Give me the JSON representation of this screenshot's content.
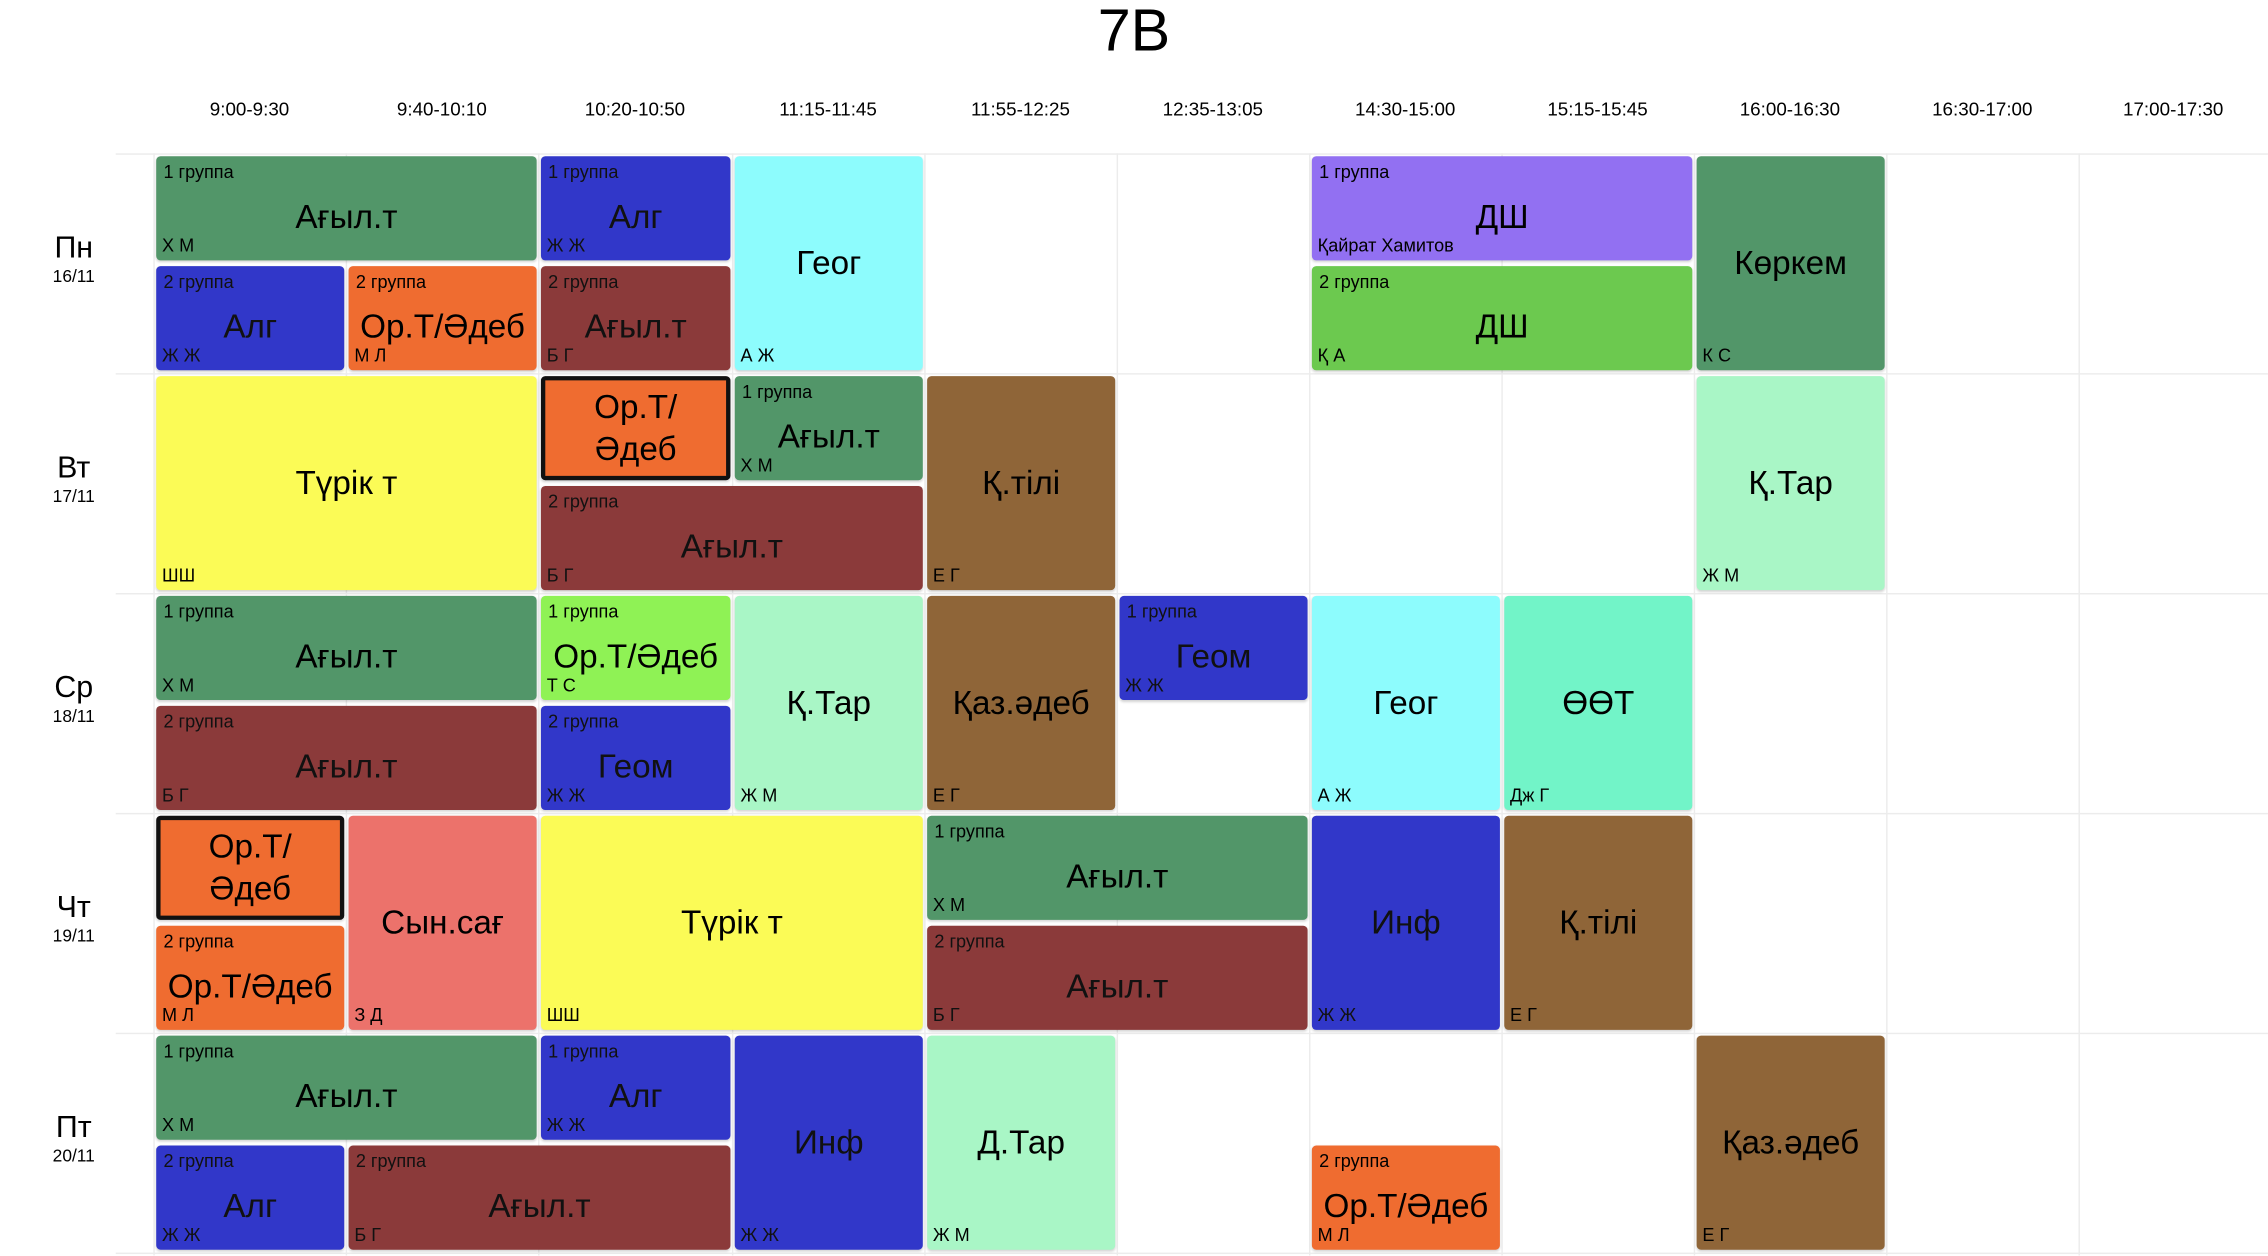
{
  "title": "7В",
  "times": [
    "9:00-9:30",
    "9:40-10:10",
    "10:20-10:50",
    "11:15-11:45",
    "11:55-12:25",
    "12:35-13:05",
    "14:30-15:00",
    "15:15-15:45",
    "16:00-16:30",
    "16:30-17:00",
    "17:00-17:30"
  ],
  "days": [
    {
      "name": "Пн",
      "date": "16/11"
    },
    {
      "name": "Вт",
      "date": "17/11"
    },
    {
      "name": "Ср",
      "date": "18/11"
    },
    {
      "name": "Чт",
      "date": "19/11"
    },
    {
      "name": "Пт",
      "date": "20/11"
    }
  ],
  "colors": {
    "english_1": "#529669",
    "english_2": "#8b3a3a",
    "algebra": "#3137c9",
    "ort_edeb": "#ef6c30",
    "ort_edeb_light": "#8ff255",
    "geog": "#8dfcfd",
    "ds_1": "#9270f2",
    "ds_2": "#6cc94f",
    "korkem": "#529669",
    "turk": "#fbfb56",
    "k_tili": "#8f6538",
    "k_tar": "#a9f6c6",
    "oot": "#72f4c8",
    "syn_sag": "#ec726b",
    "geom": "#3137c9",
    "inf": "#3137c9",
    "d_tar": "#a9f6c6",
    "kaz_edeb": "#8f6538"
  },
  "lessons": [
    {
      "id": "mon-1",
      "group": "1 группа",
      "subject": "Ағыл.т",
      "teacher": "Х М"
    },
    {
      "id": "mon-2",
      "group": "2 группа",
      "subject": "Алг",
      "teacher": "Ж Ж"
    },
    {
      "id": "mon-3",
      "group": "2 группа",
      "subject": "Ор.Т/Әдеб",
      "teacher": "М Л"
    },
    {
      "id": "mon-4",
      "group": "1 группа",
      "subject": "Алг",
      "teacher": "Ж Ж"
    },
    {
      "id": "mon-5",
      "group": "2 группа",
      "subject": "Ағыл.т",
      "teacher": "Б Г"
    },
    {
      "id": "mon-6",
      "group": "",
      "subject": "Геог",
      "teacher": "А Ж"
    },
    {
      "id": "mon-7",
      "group": "1 группа",
      "subject": "ДШ",
      "teacher": "Қайрат Хамитов"
    },
    {
      "id": "mon-8",
      "group": "2 группа",
      "subject": "ДШ",
      "teacher": "Қ А"
    },
    {
      "id": "mon-9",
      "group": "",
      "subject": "Көркем",
      "teacher": "К С"
    },
    {
      "id": "tue-1",
      "group": "",
      "subject": "Түрік т",
      "teacher": "ШШ"
    },
    {
      "id": "tue-2",
      "group": "",
      "subject": "Ор.Т/ Әдеб",
      "teacher": ""
    },
    {
      "id": "tue-3",
      "group": "1 группа",
      "subject": "Ағыл.т",
      "teacher": "Х М"
    },
    {
      "id": "tue-4",
      "group": "2 группа",
      "subject": "Ағыл.т",
      "teacher": "Б Г"
    },
    {
      "id": "tue-5",
      "group": "",
      "subject": "Қ.тілі",
      "teacher": "Е Г"
    },
    {
      "id": "tue-6",
      "group": "",
      "subject": "Қ.Тар",
      "teacher": "Ж М"
    },
    {
      "id": "wed-1",
      "group": "1 группа",
      "subject": "Ағыл.т",
      "teacher": "Х М"
    },
    {
      "id": "wed-2",
      "group": "2 группа",
      "subject": "Ағыл.т",
      "teacher": "Б Г"
    },
    {
      "id": "wed-3",
      "group": "1 группа",
      "subject": "Ор.Т/Әдеб",
      "teacher": "Т С"
    },
    {
      "id": "wed-4",
      "group": "2 группа",
      "subject": "Геом",
      "teacher": "Ж Ж"
    },
    {
      "id": "wed-5",
      "group": "",
      "subject": "Қ.Тар",
      "teacher": "Ж М"
    },
    {
      "id": "wed-6",
      "group": "",
      "subject": "Қаз.әдеб",
      "teacher": "Е Г"
    },
    {
      "id": "wed-7",
      "group": "1 группа",
      "subject": "Геом",
      "teacher": "Ж Ж"
    },
    {
      "id": "wed-8",
      "group": "",
      "subject": "Геог",
      "teacher": "А Ж"
    },
    {
      "id": "wed-9",
      "group": "",
      "subject": "ӨӨТ",
      "teacher": "Дж Г"
    },
    {
      "id": "thu-1",
      "group": "",
      "subject": "Ор.Т/ Әдеб",
      "teacher": ""
    },
    {
      "id": "thu-2",
      "group": "2 группа",
      "subject": "Ор.Т/Әдеб",
      "teacher": "М Л"
    },
    {
      "id": "thu-3",
      "group": "",
      "subject": "Сын.сағ",
      "teacher": "З Д"
    },
    {
      "id": "thu-4",
      "group": "",
      "subject": "Түрік т",
      "teacher": "ШШ"
    },
    {
      "id": "thu-5",
      "group": "1 группа",
      "subject": "Ағыл.т",
      "teacher": "Х М"
    },
    {
      "id": "thu-6",
      "group": "2 группа",
      "subject": "Ағыл.т",
      "teacher": "Б Г"
    },
    {
      "id": "thu-7",
      "group": "",
      "subject": "Инф",
      "teacher": "Ж Ж"
    },
    {
      "id": "thu-8",
      "group": "",
      "subject": "Қ.тілі",
      "teacher": "Е Г"
    },
    {
      "id": "fri-1",
      "group": "1 группа",
      "subject": "Ағыл.т",
      "teacher": "Х М"
    },
    {
      "id": "fri-2",
      "group": "2 группа",
      "subject": "Алг",
      "teacher": "Ж Ж"
    },
    {
      "id": "fri-3",
      "group": "1 группа",
      "subject": "Алг",
      "teacher": "Ж Ж"
    },
    {
      "id": "fri-4",
      "group": "2 группа",
      "subject": "Ағыл.т",
      "teacher": "Б Г"
    },
    {
      "id": "fri-5",
      "group": "",
      "subject": "Инф",
      "teacher": "Ж Ж"
    },
    {
      "id": "fri-6",
      "group": "",
      "subject": "Д.Тар",
      "teacher": "Ж М"
    },
    {
      "id": "fri-7",
      "group": "2 группа",
      "subject": "Ор.Т/Әдеб",
      "teacher": "М Л"
    },
    {
      "id": "fri-8",
      "group": "",
      "subject": "Қаз.әдеб",
      "teacher": "Е Г"
    }
  ]
}
